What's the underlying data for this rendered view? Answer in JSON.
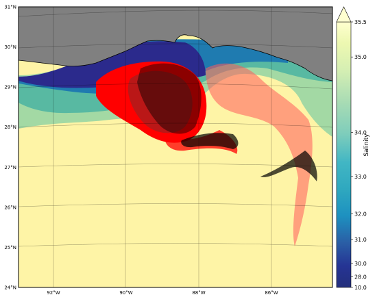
{
  "chart_data": {
    "type": "map",
    "map": {
      "region": "Gulf of Mexico",
      "lon_range": [
        -93.5,
        -84.5
      ],
      "lat_range": [
        24,
        31
      ],
      "lon_ticks": [
        {
          "value": -92,
          "label": "92°W"
        },
        {
          "value": -90,
          "label": "90°W"
        },
        {
          "value": -88,
          "label": "88°W"
        },
        {
          "value": -86,
          "label": "86°W"
        }
      ],
      "lat_ticks": [
        {
          "value": 31,
          "label": "31°N"
        },
        {
          "value": 30,
          "label": "30°N"
        },
        {
          "value": 29,
          "label": "29°N"
        },
        {
          "value": 28,
          "label": "28°N"
        },
        {
          "value": 27,
          "label": "27°N"
        },
        {
          "value": 26,
          "label": "26°N"
        },
        {
          "value": 25,
          "label": "25°N"
        },
        {
          "value": 24,
          "label": "24°N"
        }
      ],
      "gridlines": true
    },
    "colorbar": {
      "label": "Salinity",
      "colormap": "YlGnBu_r",
      "range": [
        10.0,
        35.5
      ],
      "extend": "max",
      "ticks": [
        {
          "value": 10.0,
          "label": "10.0"
        },
        {
          "value": 28.0,
          "label": "28.0"
        },
        {
          "value": 30.0,
          "label": "30.0"
        },
        {
          "value": 31.0,
          "label": "31.0"
        },
        {
          "value": 32.0,
          "label": "32.0"
        },
        {
          "value": 33.0,
          "label": "33.0"
        },
        {
          "value": 34.0,
          "label": "34.0"
        },
        {
          "value": 35.0,
          "label": "35.0"
        },
        {
          "value": 35.5,
          "label": "35.5"
        }
      ]
    },
    "colors": {
      "open_water": "#fef4a6",
      "land": "#808080",
      "particles": "#ff0000",
      "observations": "#000000",
      "low_salinity": "#2b2a8c",
      "mid_salinity": "#1f7bb0",
      "high_salinity": "#7ec87c"
    }
  }
}
